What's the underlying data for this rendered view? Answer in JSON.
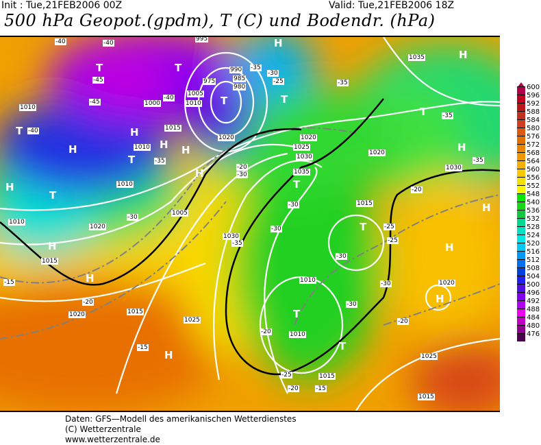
{
  "header": {
    "init": "Init : Tue,21FEB2006 00Z",
    "valid": "Valid: Tue,21FEB2006 18Z",
    "title": "500 hPa Geopot.(gpdm), T (C) und Bodendr. (hPa)"
  },
  "legend": {
    "values": [
      "600",
      "596",
      "592",
      "588",
      "584",
      "580",
      "576",
      "572",
      "568",
      "564",
      "560",
      "556",
      "552",
      "548",
      "540",
      "536",
      "532",
      "528",
      "524",
      "520",
      "516",
      "512",
      "508",
      "504",
      "500",
      "496",
      "492",
      "488",
      "484",
      "480",
      "476"
    ],
    "colors": [
      "#b0004a",
      "#c0001e",
      "#b81818",
      "#c03020",
      "#d04020",
      "#dc5a10",
      "#e07000",
      "#e88400",
      "#f09800",
      "#f8b000",
      "#f8c800",
      "#f8e000",
      "#f8f800",
      "#00e800",
      "#18d818",
      "#10c840",
      "#00d890",
      "#00e0c0",
      "#00e8e8",
      "#00c8f8",
      "#0098f8",
      "#0070f0",
      "#0040e0",
      "#2020f0",
      "#5010e0",
      "#8000f0",
      "#b000f0",
      "#f000f0",
      "#c000c0",
      "#900090",
      "#500050"
    ]
  },
  "map": {
    "pressure_labels": [
      "1035",
      "995",
      "990",
      "985",
      "980",
      "975",
      "1005",
      "1000",
      "1010",
      "1010",
      "1015",
      "1020",
      "1020",
      "1025",
      "1030",
      "1035",
      "1030",
      "1010",
      "1005",
      "1020",
      "1015",
      "1015",
      "1020",
      "1015",
      "1025",
      "1030",
      "1010",
      "1010",
      "1015",
      "1025",
      "1020",
      "1015",
      "1010",
      "1020",
      "1010"
    ],
    "temp_labels": [
      "-40",
      "-40",
      "-45",
      "-45",
      "-40",
      "-40",
      "-35",
      "-35",
      "-30",
      "-35",
      "-30",
      "-25",
      "-35",
      "-35",
      "-30",
      "-20",
      "-20",
      "-30",
      "-30",
      "-35",
      "-25",
      "-25",
      "-30",
      "-30",
      "-30",
      "-20",
      "-20",
      "-25",
      "-15",
      "-20",
      "-15",
      "-15",
      "-20"
    ],
    "highs_lows": [
      "H",
      "T",
      "T",
      "T",
      "T",
      "H",
      "H",
      "T",
      "H",
      "H",
      "T",
      "T",
      "H",
      "H",
      "T",
      "T",
      "H",
      "H",
      "H",
      "H",
      "T",
      "T",
      "H",
      "H",
      "H",
      "T",
      "H"
    ],
    "colors": {
      "isobar": "#ffffff",
      "isotherm": "#7f7f7f",
      "frontline": "#000000"
    }
  },
  "footer": {
    "line1": "Daten: GFS—Modell des amerikanischen Wetterdienstes",
    "line2": "(C) Wetterzentrale",
    "line3": "www.wetterzentrale.de"
  }
}
